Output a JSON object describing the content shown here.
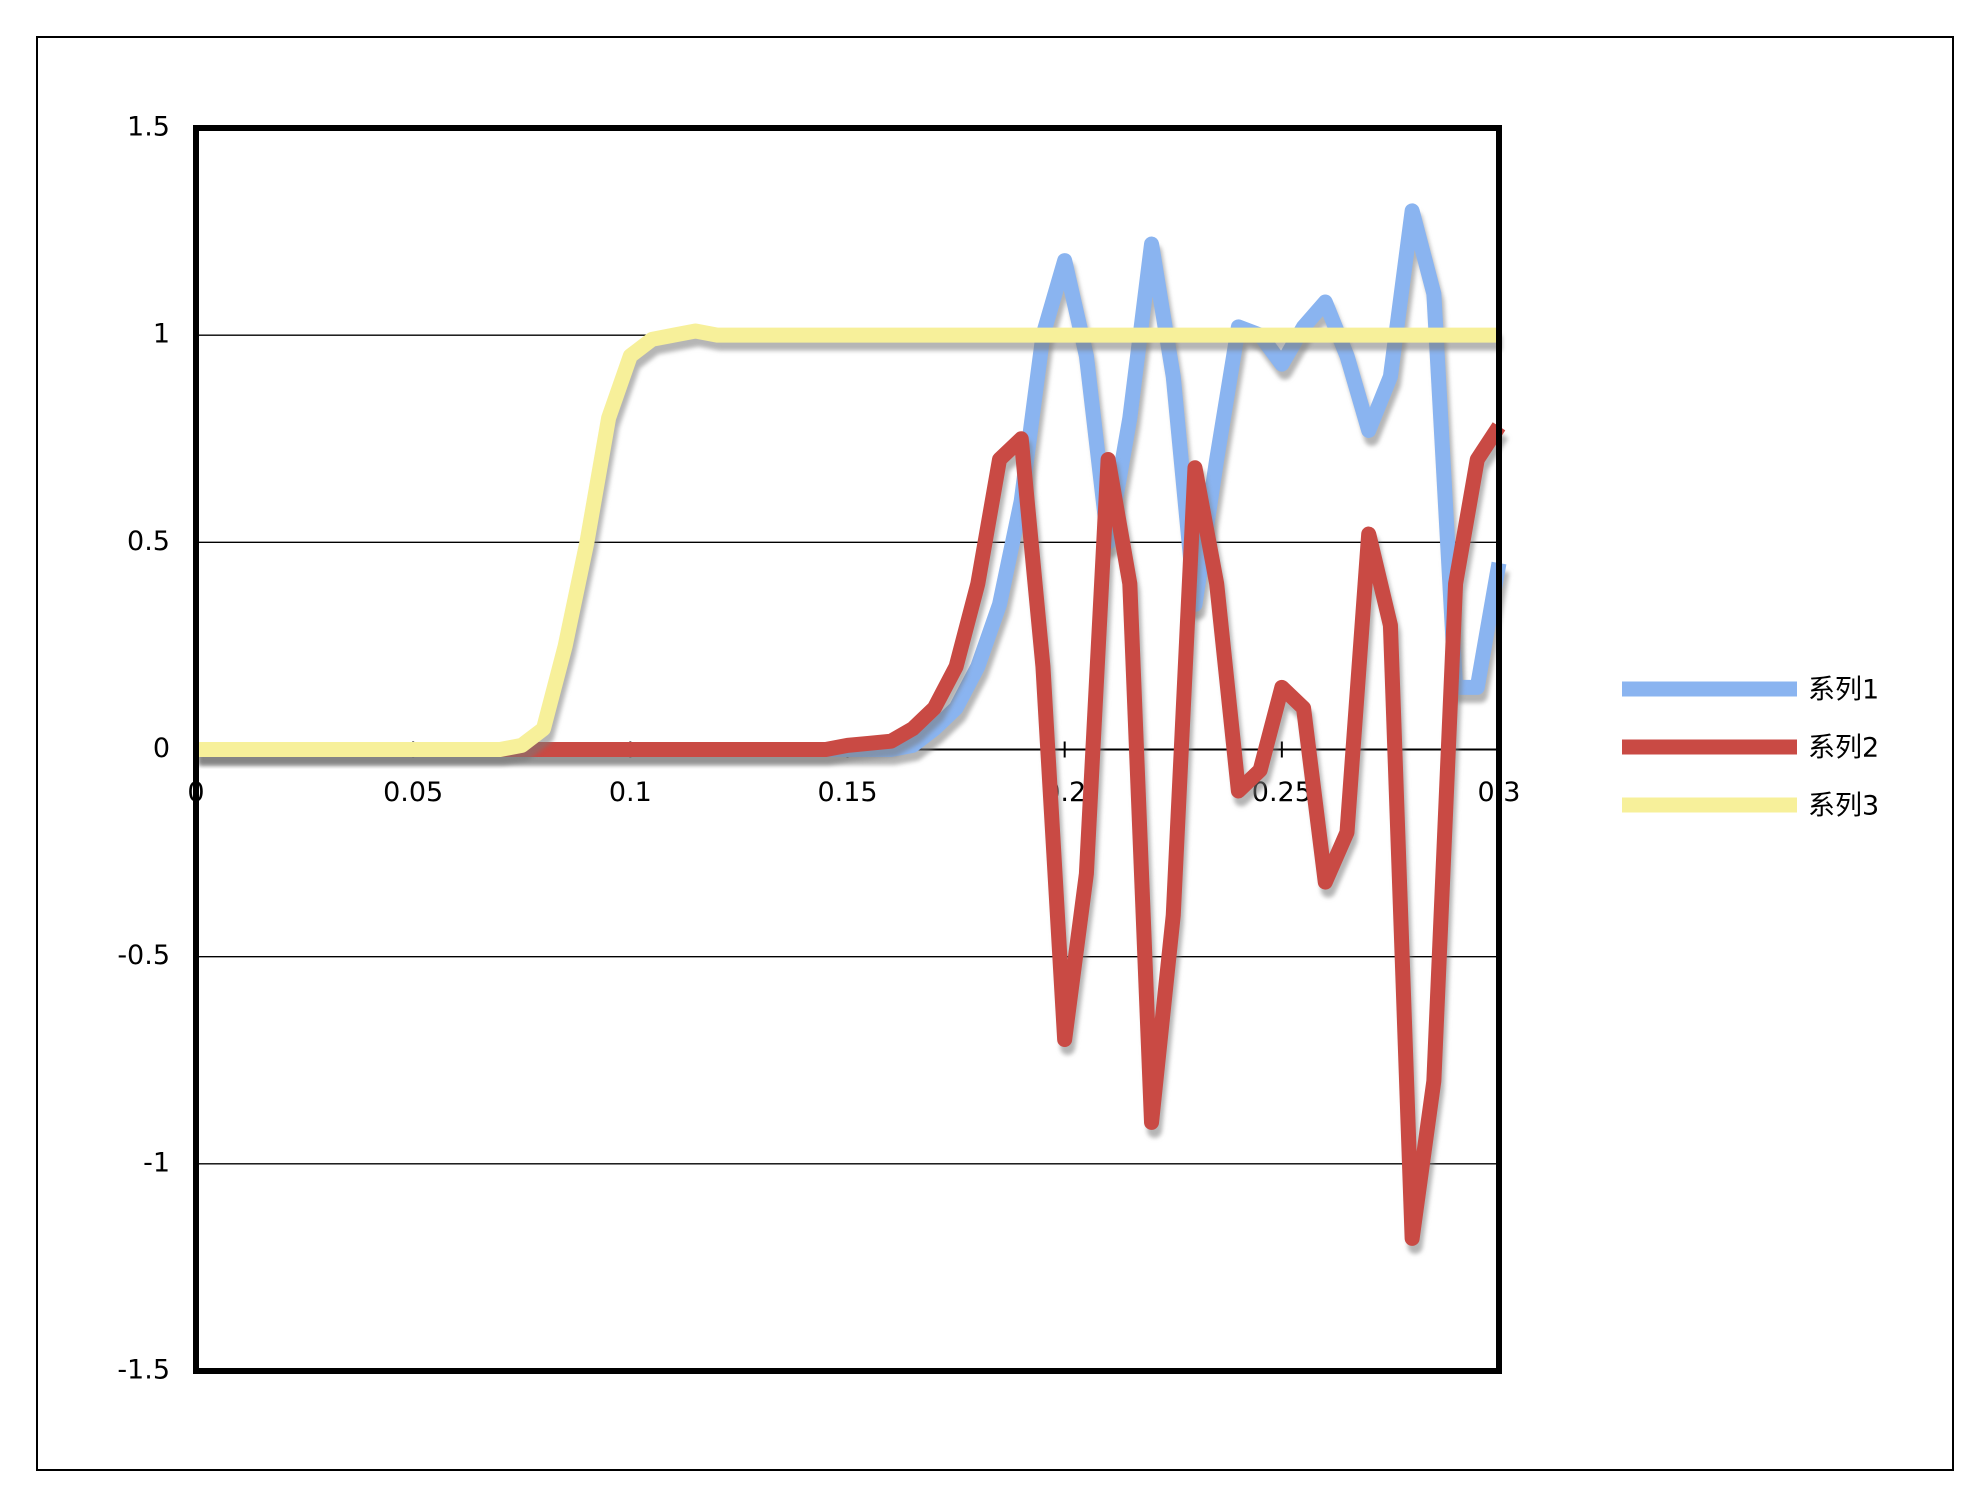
{
  "chart_data": {
    "type": "line",
    "x": [
      0,
      0.005,
      0.01,
      0.015,
      0.02,
      0.025,
      0.03,
      0.035,
      0.04,
      0.045,
      0.05,
      0.055,
      0.06,
      0.065,
      0.07,
      0.075,
      0.08,
      0.085,
      0.09,
      0.095,
      0.1,
      0.105,
      0.11,
      0.115,
      0.12,
      0.125,
      0.13,
      0.135,
      0.14,
      0.145,
      0.15,
      0.155,
      0.16,
      0.165,
      0.17,
      0.175,
      0.18,
      0.185,
      0.19,
      0.195,
      0.2,
      0.205,
      0.21,
      0.215,
      0.22,
      0.225,
      0.23,
      0.235,
      0.24,
      0.245,
      0.25,
      0.255,
      0.26,
      0.265,
      0.27,
      0.275,
      0.28,
      0.285,
      0.29,
      0.295,
      0.3
    ],
    "series": [
      {
        "name": "系列1",
        "color": "#8ab4f0",
        "values": [
          0,
          0,
          0,
          0,
          0,
          0,
          0,
          0,
          0,
          0,
          0,
          0,
          0,
          0,
          0,
          0,
          0,
          0,
          0,
          0,
          0,
          0,
          0,
          0,
          0,
          0,
          0,
          0,
          0,
          0,
          0,
          0,
          0,
          0.01,
          0.05,
          0.1,
          0.2,
          0.35,
          0.6,
          1.0,
          1.18,
          0.95,
          0.5,
          0.8,
          1.22,
          0.9,
          0.35,
          0.7,
          1.02,
          1.0,
          0.93,
          1.02,
          1.08,
          0.95,
          0.77,
          0.9,
          1.3,
          1.1,
          0.15,
          0.15,
          0.45
        ]
      },
      {
        "name": "系列2",
        "color": "#c94a44",
        "values": [
          0,
          0,
          0,
          0,
          0,
          0,
          0,
          0,
          0,
          0,
          0,
          0,
          0,
          0,
          0,
          0,
          0,
          0,
          0,
          0,
          0,
          0,
          0,
          0,
          0,
          0,
          0,
          0,
          0,
          0,
          0.01,
          0.015,
          0.02,
          0.05,
          0.1,
          0.2,
          0.4,
          0.7,
          0.75,
          0.2,
          -0.7,
          -0.3,
          0.7,
          0.4,
          -0.9,
          -0.4,
          0.68,
          0.4,
          -0.1,
          -0.05,
          0.15,
          0.1,
          -0.32,
          -0.2,
          0.52,
          0.3,
          -1.18,
          -0.8,
          0.4,
          0.7,
          0.78
        ]
      },
      {
        "name": "系列3",
        "color": "#f7f09a",
        "values": [
          0,
          0,
          0,
          0,
          0,
          0,
          0,
          0,
          0,
          0,
          0,
          0,
          0,
          0,
          0,
          0.01,
          0.05,
          0.25,
          0.5,
          0.8,
          0.95,
          0.99,
          1.0,
          1.01,
          1.0,
          1,
          1,
          1,
          1,
          1,
          1,
          1,
          1,
          1,
          1,
          1,
          1,
          1,
          1,
          1,
          1,
          1,
          1,
          1,
          1,
          1,
          1,
          1,
          1,
          1,
          1,
          1,
          1,
          1,
          1,
          1,
          1,
          1,
          1,
          1,
          1
        ]
      }
    ],
    "xlim": [
      0,
      0.3
    ],
    "xticks": [
      0,
      0.05,
      0.1,
      0.15,
      0.2,
      0.25,
      0.3
    ],
    "ylim": [
      -1.5,
      1.5
    ],
    "yticks": [
      -1.5,
      -1,
      -0.5,
      0,
      0.5,
      1,
      1.5
    ],
    "grid": true,
    "legend": "right"
  }
}
